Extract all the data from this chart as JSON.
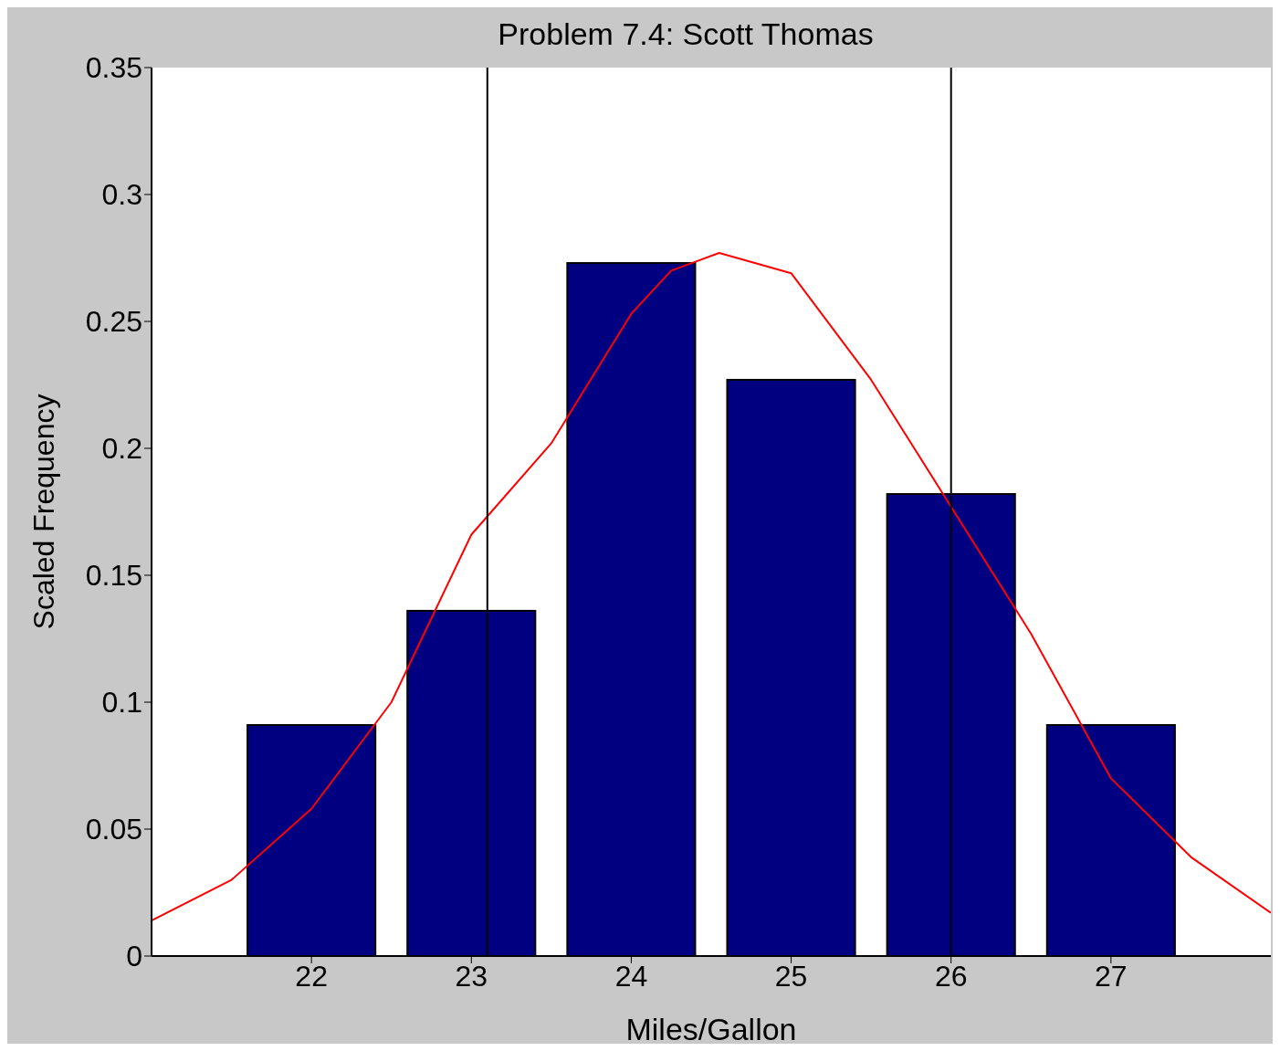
{
  "chart_data": {
    "type": "bar",
    "title": "Problem 7.4: Scott Thomas",
    "xlabel": "Miles/Gallon",
    "ylabel": "Scaled Frequency",
    "x": [
      22,
      23,
      24,
      25,
      26,
      27
    ],
    "series": [
      {
        "color": "#000080",
        "values": [
          0.091,
          0.136,
          0.273,
          0.227,
          0.182,
          0.091
        ]
      },
      {
        "type": "line",
        "color": "#ff0000",
        "x": [
          21,
          21.5,
          22,
          22.5,
          23,
          23.5,
          24,
          24.25,
          24.55,
          25,
          25.5,
          26,
          26.5,
          27,
          27.5,
          28
        ],
        "values": [
          0.014,
          0.03,
          0.058,
          0.1,
          0.166,
          0.202,
          0.253,
          0.27,
          0.277,
          0.269,
          0.227,
          0.177,
          0.127,
          0.07,
          0.039,
          0.017
        ]
      }
    ],
    "xlim": [
      21,
      28
    ],
    "xticks": [
      22,
      23,
      24,
      25,
      26,
      27
    ],
    "ylim": [
      0,
      0.35
    ],
    "yticks": [
      0,
      0.05,
      0.1,
      0.15,
      0.2,
      0.25,
      0.3,
      0.35
    ],
    "ref_lines": [
      {
        "axis": "x",
        "value": 23.1,
        "color": "#000000"
      },
      {
        "axis": "x",
        "value": 26,
        "color": "#000000"
      }
    ],
    "grid": false,
    "legend": false,
    "marker": "none"
  }
}
